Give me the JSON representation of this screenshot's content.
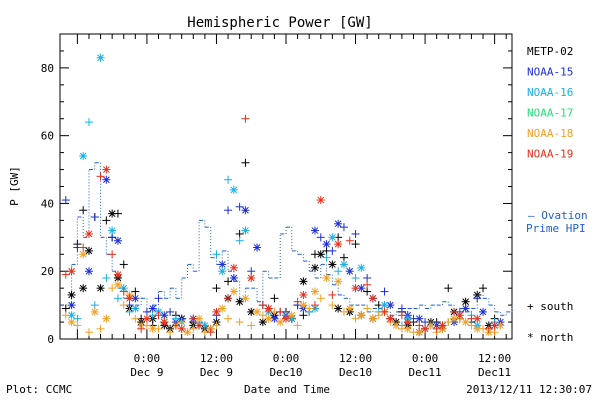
{
  "chart_data": {
    "type": "scatter",
    "title": "Hemispheric Power [GW]",
    "ylabel": "P [GW]",
    "xlabel": "Date and Time",
    "ylim": [
      0,
      90
    ],
    "xlim": [
      -15,
      63
    ],
    "yticks": [
      0,
      20,
      40,
      60,
      80
    ],
    "xticks": [
      {
        "x": 0,
        "time": "0:00",
        "day": "Dec 9"
      },
      {
        "x": 12,
        "time": "12:00",
        "day": "Dec 9"
      },
      {
        "x": 24,
        "time": "0:00",
        "day": "Dec10"
      },
      {
        "x": 36,
        "time": "12:00",
        "day": "Dec10"
      },
      {
        "x": 48,
        "time": "0:00",
        "day": "Dec11"
      },
      {
        "x": 60,
        "time": "12:00",
        "day": "Dec11"
      }
    ],
    "footer": {
      "left": "Plot: CCMC",
      "right": "2013/12/11 12:30:07"
    },
    "symbol_legend": [
      {
        "symbol": "+",
        "label": "south"
      },
      {
        "symbol": "*",
        "label": "north"
      }
    ],
    "ovation": {
      "label_line1": "— Ovation",
      "label_line2": "Prime HPI",
      "color": "#1f5fd0",
      "x": [
        -15,
        -14,
        -13,
        -12,
        -11,
        -10,
        -9,
        -8,
        -7,
        -6,
        -5,
        -4,
        -3,
        -2,
        -1,
        0,
        1,
        2,
        3,
        4,
        5,
        6,
        7,
        8,
        9,
        10,
        11,
        12,
        13,
        14,
        15,
        16,
        17,
        18,
        19,
        20,
        21,
        22,
        23,
        24,
        25,
        26,
        27,
        28,
        29,
        30,
        31,
        32,
        33,
        34,
        35,
        36,
        37,
        38,
        39,
        40,
        41,
        42,
        43,
        44,
        45,
        46,
        47,
        48,
        49,
        50,
        51,
        52,
        53,
        54,
        55,
        56,
        57,
        58,
        59,
        60,
        61,
        62,
        63
      ],
      "y": [
        10,
        9,
        22,
        36,
        30,
        50,
        52,
        30,
        25,
        20,
        15,
        12,
        10,
        10,
        12,
        8,
        10,
        14,
        12,
        15,
        12,
        18,
        22,
        20,
        35,
        33,
        24,
        22,
        26,
        20,
        17,
        12,
        15,
        15,
        11,
        20,
        18,
        18,
        31,
        33,
        26,
        25,
        23,
        20,
        18,
        22,
        19,
        16,
        13,
        12,
        10,
        10,
        10,
        8,
        9,
        9,
        8,
        7,
        8,
        8,
        9,
        9,
        10,
        9,
        10,
        10,
        11,
        10,
        8,
        9,
        8,
        9,
        13,
        12,
        10,
        8,
        7,
        8,
        10
      ]
    },
    "series": [
      {
        "name": "METP-02",
        "color": "#000000",
        "south": {
          "x": [
            -14,
            -12,
            -11,
            -9,
            -7,
            -6,
            -5,
            -4,
            -2,
            -1,
            1,
            3,
            5,
            6,
            8,
            10,
            12,
            14,
            16,
            17,
            20,
            22,
            24,
            25,
            26,
            27,
            29,
            31,
            33,
            34,
            36,
            38,
            40,
            42,
            44,
            46,
            48,
            50,
            52,
            54,
            56,
            58,
            60
          ],
          "y": [
            9,
            28,
            38,
            36,
            35,
            30,
            37,
            22,
            14,
            6,
            4,
            5,
            7,
            6,
            5,
            4,
            15,
            17,
            31,
            52,
            10,
            12,
            8,
            6,
            10,
            7,
            25,
            26,
            30,
            24,
            28,
            14,
            10,
            6,
            8,
            5,
            3,
            5,
            15,
            6,
            5,
            15,
            6
          ]
        },
        "north": {
          "x": [
            -13,
            -11,
            -10,
            -8,
            -6,
            -5,
            -3,
            -1,
            1,
            3,
            4,
            6,
            8,
            10,
            12,
            14,
            16,
            18,
            20,
            22,
            25,
            27,
            29,
            30,
            32,
            33,
            35,
            37,
            39,
            41,
            43,
            45,
            47,
            49,
            51,
            53,
            55,
            57,
            59
          ],
          "y": [
            13,
            15,
            26,
            15,
            37,
            18,
            9,
            5,
            6,
            4,
            3,
            6,
            4,
            3,
            5,
            12,
            11,
            8,
            5,
            7,
            6,
            17,
            21,
            25,
            22,
            9,
            8,
            7,
            6,
            8,
            5,
            4,
            2,
            5,
            3,
            8,
            11,
            13,
            4
          ]
        }
      },
      {
        "name": "NOAA-15",
        "color": "#1c2fd6",
        "south": {
          "x": [
            -14,
            -12,
            -9,
            -6,
            -3,
            0,
            2,
            4,
            6,
            9,
            12,
            14,
            16,
            18,
            21,
            23,
            26,
            28,
            30,
            32,
            34,
            36,
            38,
            41,
            44,
            46,
            48,
            51,
            54,
            57,
            60
          ],
          "y": [
            41,
            27,
            36,
            30,
            10,
            8,
            12,
            8,
            6,
            4,
            7,
            38,
            39,
            20,
            9,
            8,
            10,
            8,
            30,
            26,
            33,
            31,
            18,
            14,
            9,
            6,
            5,
            4,
            8,
            12,
            4
          ]
        },
        "north": {
          "x": [
            -13,
            -10,
            -7,
            -5,
            -2,
            1,
            3,
            5,
            8,
            11,
            13,
            15,
            17,
            19,
            22,
            24,
            27,
            29,
            31,
            33,
            35,
            37,
            39,
            42,
            45,
            47,
            50,
            53,
            55,
            58,
            61
          ],
          "y": [
            10,
            20,
            47,
            29,
            12,
            9,
            7,
            5,
            6,
            3,
            22,
            18,
            38,
            27,
            6,
            7,
            9,
            32,
            28,
            34,
            20,
            15,
            12,
            10,
            7,
            6,
            4,
            5,
            9,
            8,
            5
          ]
        }
      },
      {
        "name": "NOAA-16",
        "color": "#16b0e6",
        "south": {
          "x": [
            -12,
            -10,
            -9,
            -7,
            -5,
            -3,
            1,
            5,
            9,
            12,
            14,
            16,
            20,
            24,
            28,
            31,
            33,
            36,
            40,
            44,
            48,
            52,
            56,
            60
          ],
          "y": [
            6,
            64,
            10,
            18,
            12,
            8,
            7,
            6,
            5,
            25,
            47,
            29,
            10,
            7,
            8,
            24,
            20,
            18,
            8,
            4,
            3,
            5,
            7,
            5
          ]
        },
        "north": {
          "x": [
            -13,
            -11,
            -8,
            -6,
            -4,
            -2,
            2,
            6,
            10,
            13,
            15,
            17,
            21,
            25,
            29,
            32,
            34,
            37,
            41,
            45,
            49,
            53,
            57
          ],
          "y": [
            7,
            54,
            83,
            32,
            15,
            9,
            8,
            5,
            4,
            20,
            44,
            32,
            8,
            6,
            9,
            30,
            22,
            21,
            10,
            6,
            4,
            6,
            4
          ]
        }
      },
      {
        "name": "NOAA-17",
        "color": "#22e07a",
        "south": {
          "x": [],
          "y": []
        },
        "north": {
          "x": [],
          "y": []
        }
      },
      {
        "name": "NOAA-18",
        "color": "#f2a024",
        "south": {
          "x": [
            -14,
            -12,
            -10,
            -8,
            -6,
            -4,
            -2,
            0,
            2,
            4,
            6,
            8,
            10,
            12,
            14,
            16,
            18,
            20,
            22,
            24,
            26,
            28,
            30,
            32,
            34,
            36,
            38,
            40,
            42,
            44,
            46,
            48,
            50,
            52,
            54,
            56,
            58,
            60
          ],
          "y": [
            7,
            4,
            2,
            3,
            15,
            10,
            6,
            4,
            3,
            2,
            5,
            3,
            2,
            4,
            6,
            5,
            4,
            7,
            8,
            6,
            4,
            9,
            12,
            10,
            8,
            6,
            9,
            7,
            5,
            3,
            2,
            3,
            2,
            5,
            6,
            4,
            3,
            2
          ]
        },
        "north": {
          "x": [
            -13,
            -11,
            -9,
            -7,
            -5,
            -3,
            -1,
            1,
            3,
            5,
            7,
            9,
            11,
            13,
            15,
            17,
            19,
            21,
            23,
            25,
            27,
            29,
            31,
            33,
            35,
            37,
            39,
            41,
            43,
            45,
            47,
            49,
            51,
            53,
            55,
            57,
            59,
            61
          ],
          "y": [
            5,
            25,
            8,
            6,
            16,
            13,
            4,
            3,
            5,
            4,
            2,
            6,
            3,
            9,
            14,
            12,
            8,
            6,
            5,
            7,
            10,
            14,
            18,
            17,
            9,
            7,
            6,
            8,
            4,
            3,
            2,
            4,
            3,
            6,
            5,
            3,
            2,
            4
          ]
        }
      },
      {
        "name": "NOAA-19",
        "color": "#e4301c",
        "south": {
          "x": [
            -14,
            -11,
            -8,
            -6,
            -4,
            -1,
            2,
            5,
            8,
            11,
            14,
            17,
            20,
            23,
            26,
            29,
            32,
            35,
            38,
            41,
            44,
            47,
            50,
            53,
            56,
            59
          ],
          "y": [
            19,
            27,
            48,
            25,
            14,
            3,
            7,
            4,
            6,
            2,
            12,
            65,
            10,
            8,
            11,
            10,
            13,
            29,
            16,
            8,
            7,
            4,
            3,
            8,
            6,
            3
          ]
        },
        "north": {
          "x": [
            -13,
            -10,
            -7,
            -5,
            -3,
            0,
            3,
            6,
            9,
            12,
            15,
            18,
            21,
            24,
            27,
            30,
            33,
            36,
            39,
            42,
            45,
            48,
            51,
            54,
            57,
            60
          ],
          "y": [
            20,
            31,
            50,
            19,
            12,
            6,
            5,
            3,
            4,
            8,
            21,
            18,
            9,
            6,
            13,
            41,
            28,
            15,
            12,
            6,
            5,
            3,
            4,
            7,
            6,
            4
          ]
        }
      }
    ]
  }
}
